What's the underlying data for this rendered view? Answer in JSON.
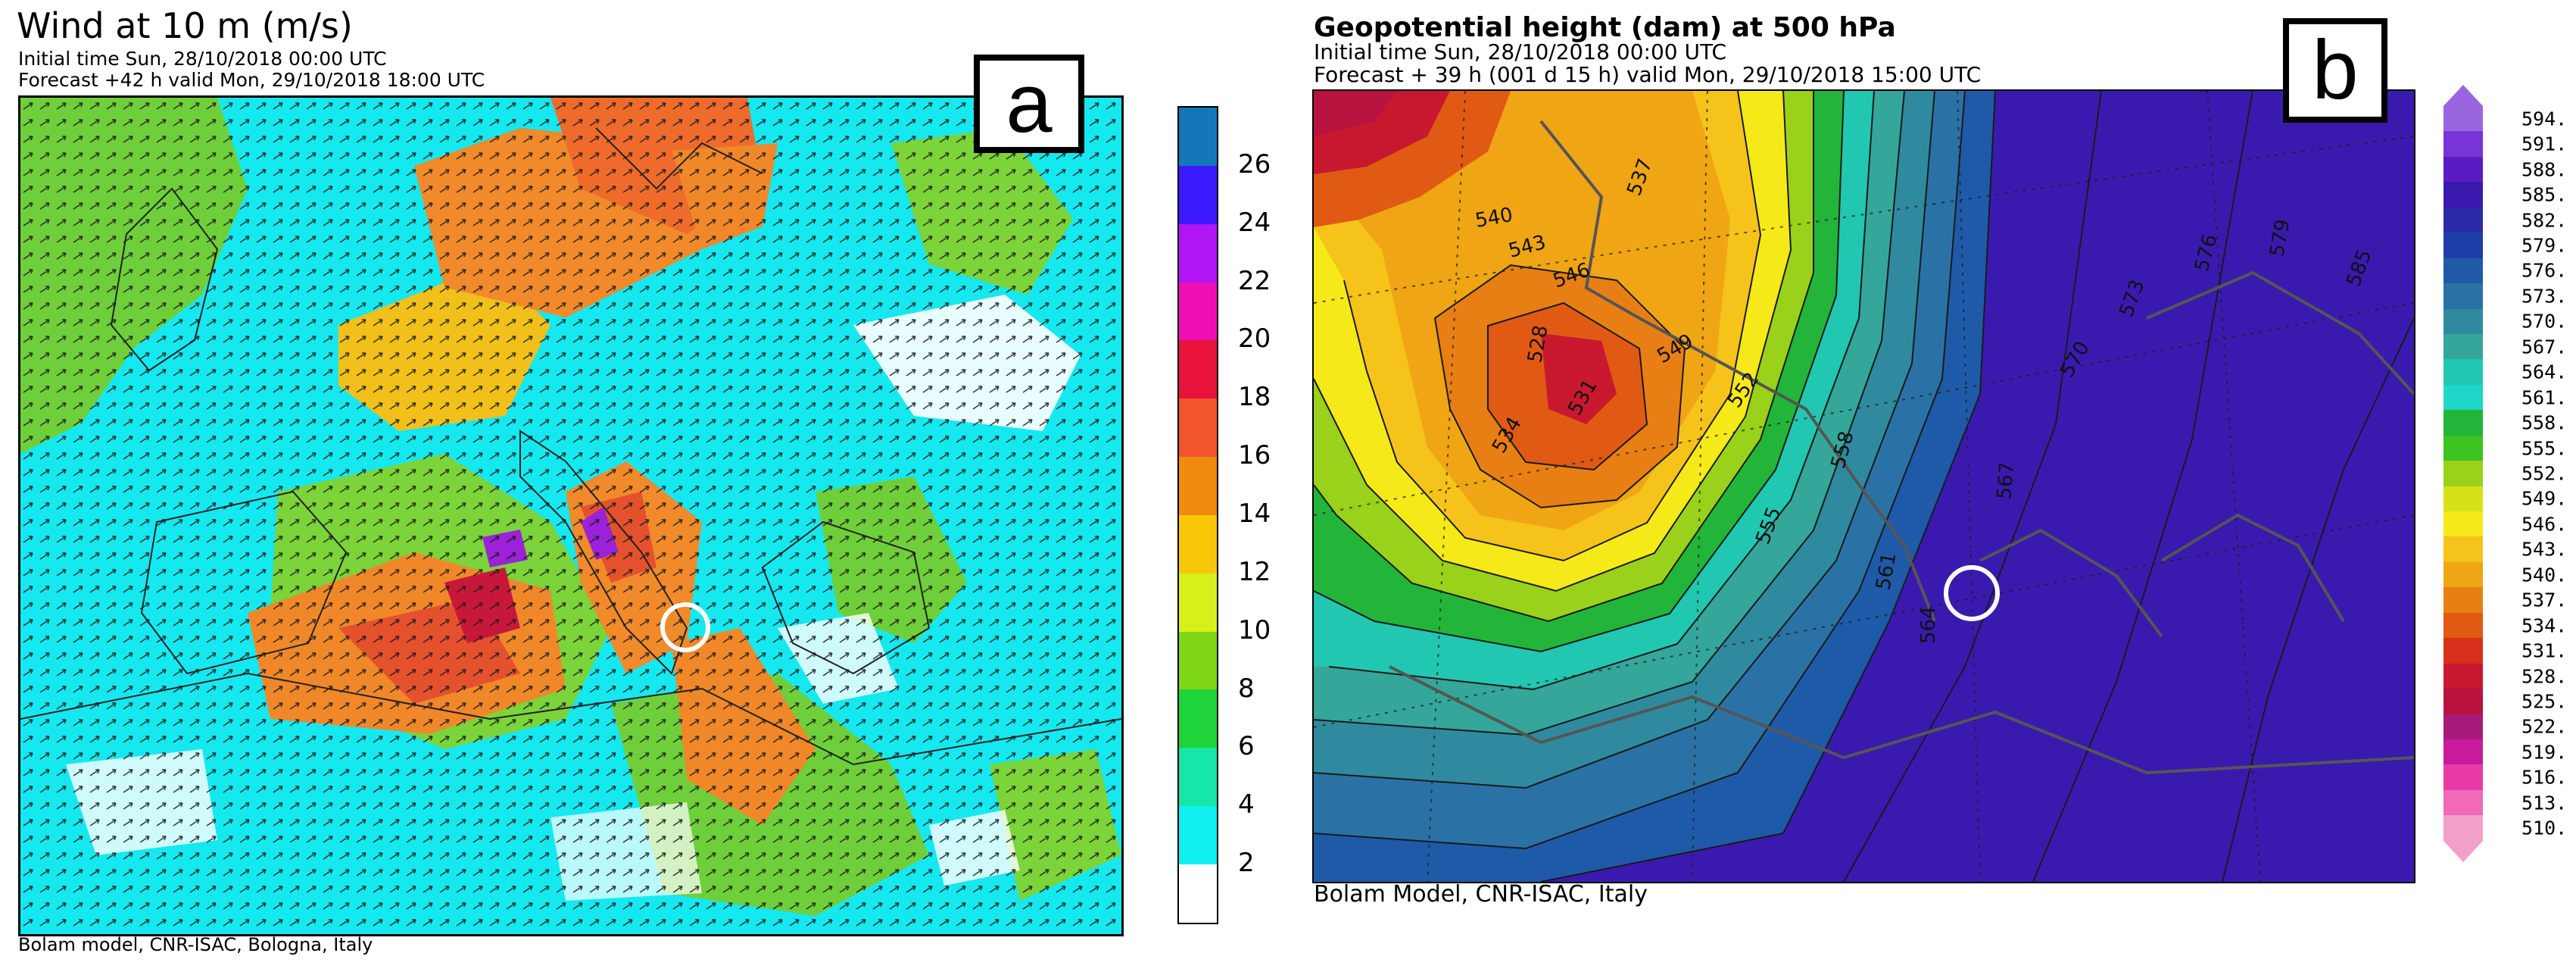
{
  "panel_a": {
    "title": "Wind at 10 m (m/s)",
    "initial_time": "Initial time  Sun, 28/10/2018 00:00 UTC",
    "forecast": "Forecast +42 h valid  Mon, 29/10/2018 18:00 UTC",
    "footer": "Bolam model, CNR-ISAC, Bologna, Italy",
    "label": "a",
    "colorbar": {
      "labels": [
        "26",
        "24",
        "22",
        "20",
        "18",
        "16",
        "14",
        "12",
        "10",
        "8",
        "6",
        "4",
        "2"
      ],
      "colors_top_to_bottom": [
        "#1477b8",
        "#3b1aff",
        "#b015f5",
        "#f00fb4",
        "#e8123a",
        "#f2552b",
        "#f08a0f",
        "#f7c708",
        "#d8f01a",
        "#7fd617",
        "#1fd43a",
        "#16e6a8",
        "#10f0f0",
        "#ffffff"
      ]
    }
  },
  "panel_b": {
    "title": "Geopotential height (dam) at 500 hPa",
    "initial_time": "Initial time  Sun, 28/10/2018  00:00 UTC",
    "forecast": "Forecast  +  39 h  (001 d 15 h)  valid Mon, 29/10/2018 15:00 UTC",
    "footer": "Bolam Model, CNR-ISAC, Italy",
    "label": "b",
    "colorbar": {
      "labels": [
        "594.",
        "591.",
        "588.",
        "585.",
        "582.",
        "579.",
        "576.",
        "573.",
        "570.",
        "567.",
        "564.",
        "561.",
        "558.",
        "555.",
        "552.",
        "549.",
        "546.",
        "543.",
        "540.",
        "537.",
        "534.",
        "531.",
        "528.",
        "525.",
        "522.",
        "519.",
        "516.",
        "513.",
        "510."
      ],
      "colors_top_to_bottom": [
        "#9966e0",
        "#7a33d6",
        "#5a1bc2",
        "#3a1aae",
        "#2a2aa8",
        "#1e3fa8",
        "#1f5aa8",
        "#2a72a6",
        "#2f8aa0",
        "#34a69a",
        "#21c7b0",
        "#1fd6c8",
        "#22b53a",
        "#3ec21f",
        "#9ad11a",
        "#d8e01a",
        "#f5e91a",
        "#f5c31a",
        "#f0a514",
        "#e87f14",
        "#e05a14",
        "#d8301a",
        "#c81830",
        "#b8123e",
        "#a81a7a",
        "#c81a9a",
        "#e83aa6",
        "#f06ab8",
        "#f2a0c8"
      ]
    },
    "contour_labels": [
      "537",
      "540",
      "543",
      "546",
      "549",
      "552",
      "555",
      "558",
      "561",
      "564",
      "567",
      "570",
      "573",
      "576",
      "579",
      "585",
      "528",
      "531",
      "534"
    ]
  }
}
